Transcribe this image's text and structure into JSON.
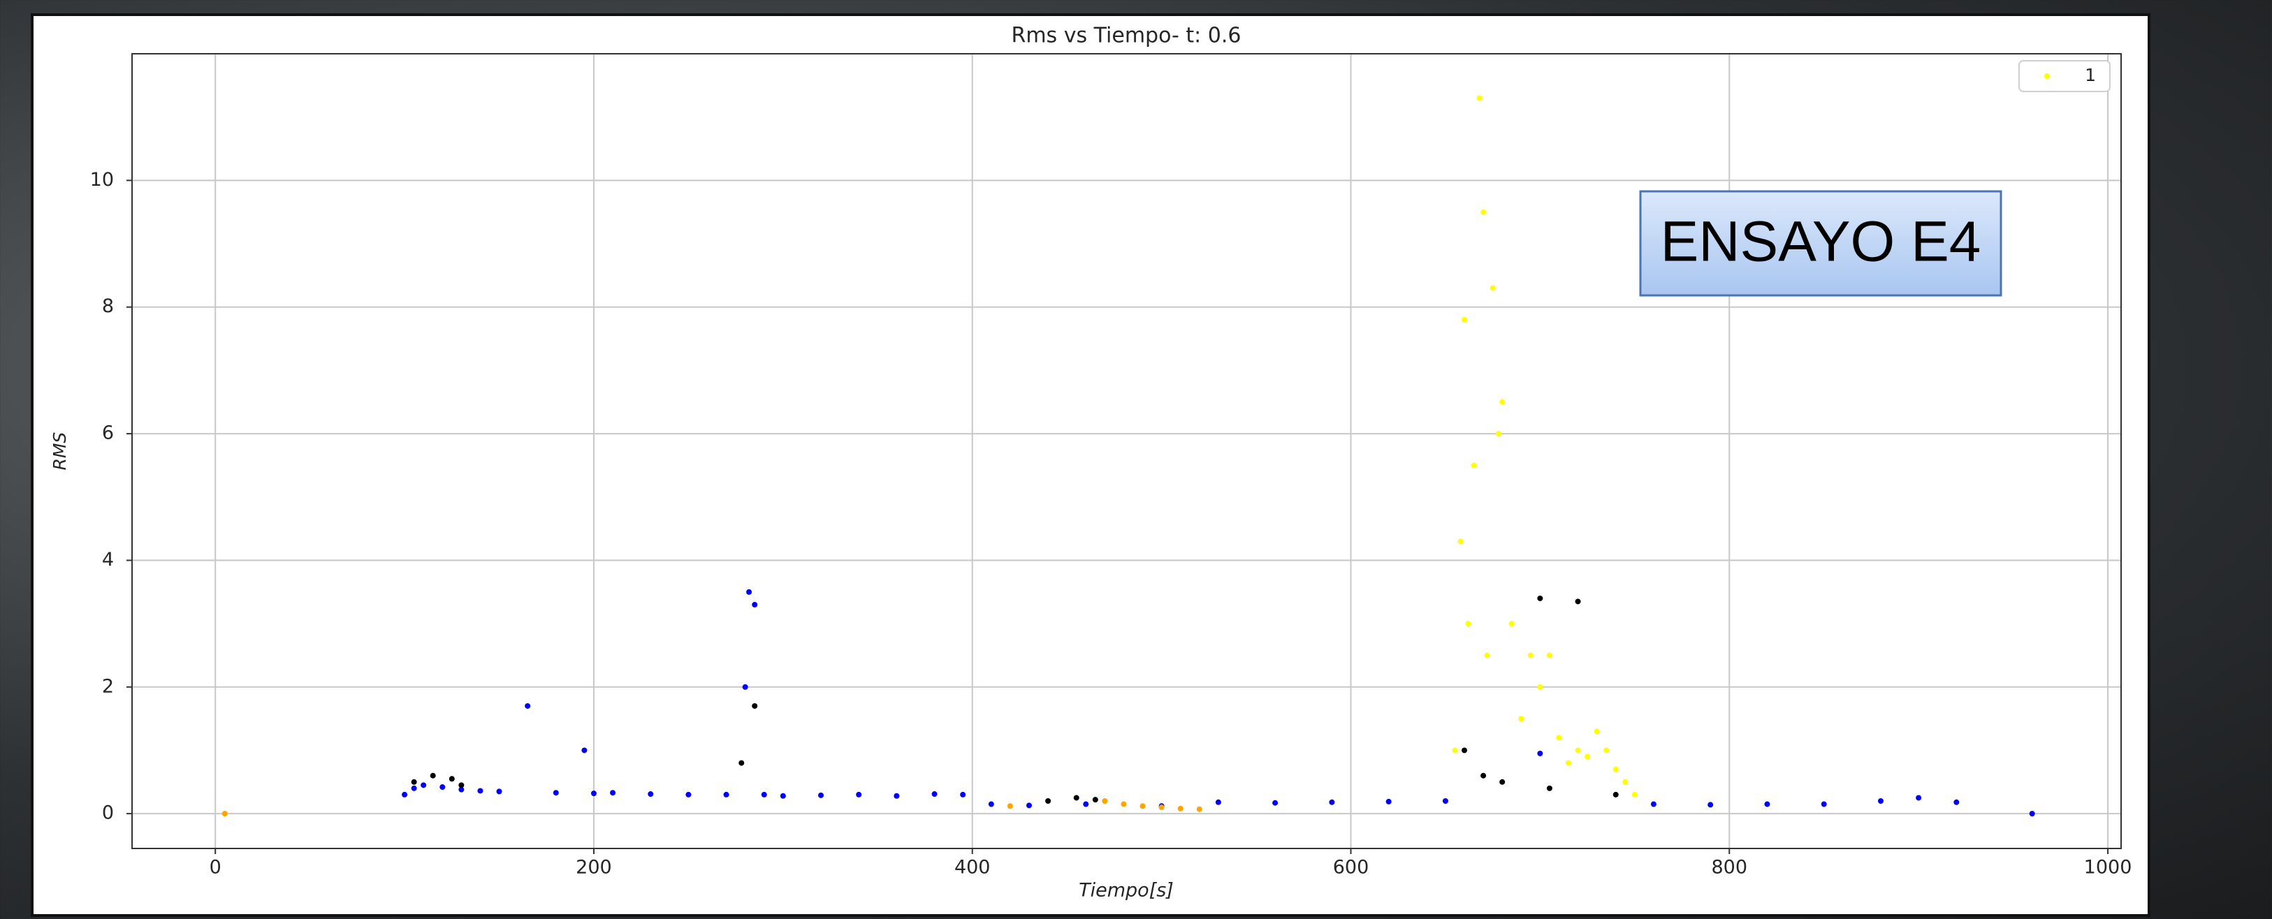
{
  "chart_data": {
    "type": "scatter",
    "title": "Rms vs Tiempo- t: 0.6",
    "x_label": "Tiempo[s]",
    "y_label": "RMS",
    "annotation": "ENSAYO E4",
    "xlim": [
      -44,
      1007
    ],
    "ylim": [
      -0.55,
      12
    ],
    "xticks": [
      0,
      200,
      400,
      600,
      800,
      1000
    ],
    "yticks": [
      0,
      2,
      4,
      6,
      8,
      10
    ],
    "grid": true,
    "legend": "upper right",
    "series": [
      {
        "name": "1",
        "color": "#ffff00",
        "x": [
          655,
          658,
          660,
          662,
          665,
          668,
          670,
          672,
          675,
          678,
          680,
          685,
          690,
          695,
          700,
          705,
          710,
          715,
          720,
          725,
          730,
          735,
          740,
          745,
          750
        ],
        "values": [
          1.0,
          4.3,
          7.8,
          3.0,
          5.5,
          11.3,
          9.5,
          2.5,
          8.3,
          6.0,
          6.5,
          3.0,
          1.5,
          2.5,
          2.0,
          2.5,
          1.2,
          0.8,
          1.0,
          0.9,
          1.3,
          1.0,
          0.7,
          0.5,
          0.3
        ]
      },
      {
        "color": "#0000ff",
        "x": [
          100,
          105,
          110,
          120,
          130,
          140,
          150,
          165,
          180,
          195,
          200,
          210,
          230,
          250,
          270,
          280,
          282,
          285,
          290,
          300,
          320,
          340,
          360,
          380,
          395,
          410,
          430,
          460,
          500,
          530,
          560,
          590,
          620,
          650,
          700,
          760,
          790,
          820,
          850,
          880,
          900,
          920,
          960
        ],
        "values": [
          0.3,
          0.4,
          0.45,
          0.42,
          0.38,
          0.36,
          0.35,
          1.7,
          0.33,
          1.0,
          0.32,
          0.33,
          0.31,
          0.3,
          0.3,
          2.0,
          3.5,
          3.3,
          0.3,
          0.28,
          0.29,
          0.3,
          0.28,
          0.31,
          0.3,
          0.15,
          0.13,
          0.15,
          0.12,
          0.18,
          0.17,
          0.18,
          0.19,
          0.2,
          0.95,
          0.15,
          0.14,
          0.15,
          0.15,
          0.2,
          0.25,
          0.18,
          0.0
        ]
      },
      {
        "color": "#000000",
        "x": [
          105,
          115,
          125,
          130,
          278,
          285,
          440,
          455,
          465,
          660,
          670,
          680,
          700,
          705,
          720,
          740
        ],
        "values": [
          0.5,
          0.6,
          0.55,
          0.45,
          0.8,
          1.7,
          0.2,
          0.25,
          0.22,
          1.0,
          0.6,
          0.5,
          3.4,
          0.4,
          3.35,
          0.3
        ]
      },
      {
        "color": "#ffa500",
        "x": [
          5,
          420,
          470,
          480,
          490,
          500,
          510,
          520
        ],
        "values": [
          0.0,
          0.12,
          0.2,
          0.15,
          0.12,
          0.1,
          0.08,
          0.07
        ]
      }
    ]
  }
}
